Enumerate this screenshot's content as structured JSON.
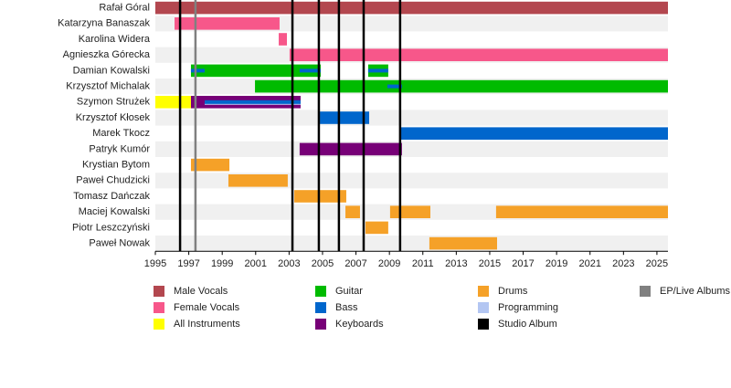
{
  "chart_data": {
    "type": "timeline",
    "xlim": [
      1995,
      2025.66
    ],
    "xticks": [
      1995,
      1997,
      1999,
      2001,
      2003,
      2005,
      2007,
      2009,
      2011,
      2013,
      2015,
      2017,
      2019,
      2021,
      2023,
      2025
    ],
    "series": [
      {
        "name": "Male Vocals",
        "color": "#b3474f"
      },
      {
        "name": "Female Vocals",
        "color": "#f7578a"
      },
      {
        "name": "All Instruments",
        "color": "#ffff00"
      },
      {
        "name": "Guitar",
        "color": "#00bb00"
      },
      {
        "name": "Bass",
        "color": "#0066cc"
      },
      {
        "name": "Keyboards",
        "color": "#770077"
      },
      {
        "name": "Drums",
        "color": "#f5a128"
      },
      {
        "name": "Programming",
        "color": "#b3c6f2"
      },
      {
        "name": "Studio Album",
        "color": "#000000"
      },
      {
        "name": "EP/Live Albums",
        "color": "#808080"
      }
    ],
    "studio_albums": [
      1996.48,
      2003.2,
      2004.78,
      2005.98,
      2007.46,
      2009.64
    ],
    "ep_albums": [
      1997.4
    ],
    "rows": [
      {
        "name": "Rafał Góral",
        "segments": [
          {
            "role": 0,
            "start": 1995,
            "end": 2025.66
          }
        ]
      },
      {
        "name": "Katarzyna Banaszak",
        "segments": [
          {
            "role": 1,
            "start": 1996.15,
            "end": 2002.43
          }
        ]
      },
      {
        "name": "Karolina Widera",
        "segments": [
          {
            "role": 1,
            "start": 2002.38,
            "end": 2002.87
          }
        ]
      },
      {
        "name": "Agnieszka Górecka",
        "segments": [
          {
            "role": 1,
            "start": 2003.03,
            "end": 2025.66
          }
        ]
      },
      {
        "name": "Damian Kowalski",
        "segments": [
          {
            "role": 3,
            "start": 1997.13,
            "end": 2004.89
          },
          {
            "role": 3,
            "start": 2007.73,
            "end": 2008.93
          },
          {
            "role": 4,
            "start": 1997.13,
            "end": 1997.95,
            "thin": true
          },
          {
            "role": 4,
            "start": 2003.63,
            "end": 2004.89,
            "thin": true
          },
          {
            "role": 4,
            "start": 2007.73,
            "end": 2008.93,
            "thin": true
          }
        ]
      },
      {
        "name": "Krzysztof Michalak",
        "segments": [
          {
            "role": 3,
            "start": 2000.96,
            "end": 2025.66
          },
          {
            "role": 4,
            "start": 2008.88,
            "end": 2009.75,
            "thin": true
          }
        ]
      },
      {
        "name": "Szymon Strużek",
        "segments": [
          {
            "role": 2,
            "start": 1995,
            "end": 1997.13
          },
          {
            "role": 5,
            "start": 1997.13,
            "end": 2003.69
          },
          {
            "role": 7,
            "start": 1997.95,
            "end": 2003.69,
            "thin": true
          },
          {
            "role": 4,
            "start": 1997.95,
            "end": 2003.69,
            "thin": true
          }
        ]
      },
      {
        "name": "Krzysztof Kłosek",
        "segments": [
          {
            "role": 4,
            "start": 2004.84,
            "end": 2007.79
          }
        ]
      },
      {
        "name": "Marek Tkocz",
        "segments": [
          {
            "role": 4,
            "start": 2009.64,
            "end": 2025.66
          }
        ]
      },
      {
        "name": "Patryk Kumór",
        "segments": [
          {
            "role": 5,
            "start": 2003.63,
            "end": 2009.75
          }
        ]
      },
      {
        "name": "Krystian Bytom",
        "segments": [
          {
            "role": 6,
            "start": 1997.13,
            "end": 1999.43
          }
        ]
      },
      {
        "name": "Paweł Chudzicki",
        "segments": [
          {
            "role": 6,
            "start": 1999.37,
            "end": 2002.92
          }
        ]
      },
      {
        "name": "Tomasz Dańczak",
        "segments": [
          {
            "role": 6,
            "start": 2003.31,
            "end": 2006.42
          }
        ]
      },
      {
        "name": "Maciej Kowalski",
        "segments": [
          {
            "role": 6,
            "start": 2006.37,
            "end": 2007.24
          },
          {
            "role": 6,
            "start": 2009.04,
            "end": 2011.45
          },
          {
            "role": 6,
            "start": 2015.38,
            "end": 2025.66
          }
        ]
      },
      {
        "name": "Piotr Leszczyński",
        "segments": [
          {
            "role": 6,
            "start": 2007.57,
            "end": 2008.93
          }
        ]
      },
      {
        "name": "Paweł Nowak",
        "segments": [
          {
            "role": 6,
            "start": 2011.39,
            "end": 2015.44
          }
        ]
      }
    ]
  }
}
